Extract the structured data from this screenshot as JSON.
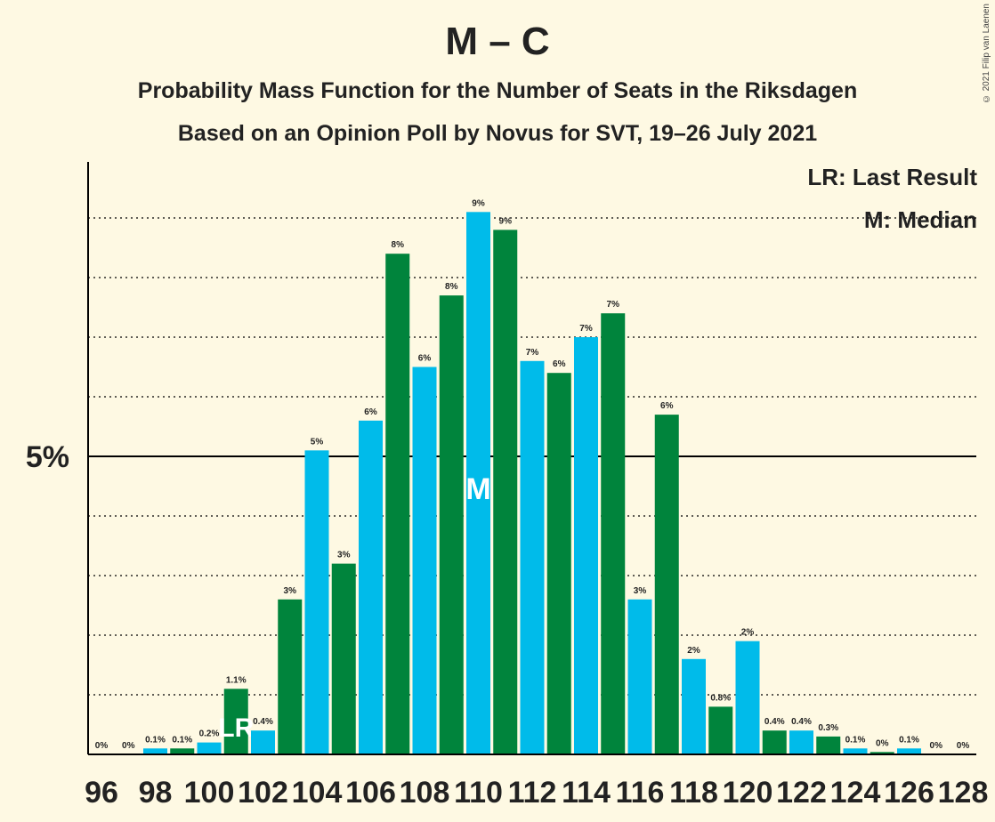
{
  "title": "M – C",
  "subtitle": "Probability Mass Function for the Number of Seats in the Riksdagen",
  "subtitle2": "Based on an Opinion Poll by Novus for SVT, 19–26 July 2021",
  "copyright": "© 2021 Filip van Laenen",
  "legend": {
    "last_result": "LR: Last Result",
    "median": "M: Median"
  },
  "colors": {
    "blue": "#00bbea",
    "green": "#00843c",
    "background": "#fef9e3",
    "text": "#222222"
  },
  "chart_data": {
    "type": "bar",
    "x": [
      96,
      97,
      98,
      99,
      100,
      101,
      102,
      103,
      104,
      105,
      106,
      107,
      108,
      109,
      110,
      111,
      112,
      113,
      114,
      115,
      116,
      117,
      118,
      119,
      120,
      121,
      122,
      123,
      124,
      125,
      126,
      127,
      128
    ],
    "values": [
      0,
      0,
      0.1,
      0.1,
      0.2,
      1.1,
      0.4,
      2.6,
      5.1,
      3.2,
      5.6,
      8.4,
      6.5,
      7.7,
      9.1,
      8.8,
      6.6,
      6.4,
      7.0,
      7.4,
      2.6,
      5.7,
      1.6,
      0.8,
      1.9,
      0.4,
      0.4,
      0.3,
      0.1,
      0.04,
      0.1,
      0,
      0
    ],
    "data_labels": [
      "0%",
      "0%",
      "0.1%",
      "0.1%",
      "0.2%",
      "1.1%",
      "0.4%",
      "3%",
      "5%",
      "3%",
      "6%",
      "8%",
      "6%",
      "8%",
      "9%",
      "9%",
      "7%",
      "6%",
      "7%",
      "7%",
      "3%",
      "6%",
      "2%",
      "0.8%",
      "2%",
      "0.4%",
      "0.4%",
      "0.3%",
      "0.1%",
      "0%",
      "0.1%",
      "0%",
      "0%"
    ],
    "tick_labels": [
      "96",
      "98",
      "100",
      "102",
      "104",
      "106",
      "108",
      "110",
      "112",
      "114",
      "116",
      "118",
      "120",
      "122",
      "124",
      "126",
      "128"
    ],
    "ylabel_tick": "5%",
    "ylim": [
      0,
      10
    ],
    "last_result_seat": 101,
    "last_result_label": "LR",
    "median_seat": 110,
    "median_label": "M",
    "grid": "dotted"
  }
}
